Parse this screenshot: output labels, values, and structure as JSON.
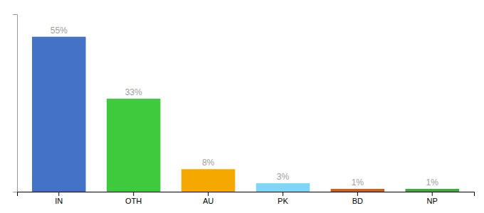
{
  "chart_data": {
    "type": "bar",
    "categories": [
      "IN",
      "OTH",
      "AU",
      "PK",
      "BD",
      "NP"
    ],
    "values": [
      55,
      33,
      8,
      3,
      1,
      1
    ],
    "value_labels": [
      "55%",
      "33%",
      "8%",
      "3%",
      "1%",
      "1%"
    ],
    "colors": [
      "#4472c4",
      "#3dca3d",
      "#f5a800",
      "#7ed6f7",
      "#c8611a",
      "#3daa3d"
    ],
    "data_labels": true,
    "ylim": [
      0,
      63
    ],
    "tick_labels": "x"
  }
}
